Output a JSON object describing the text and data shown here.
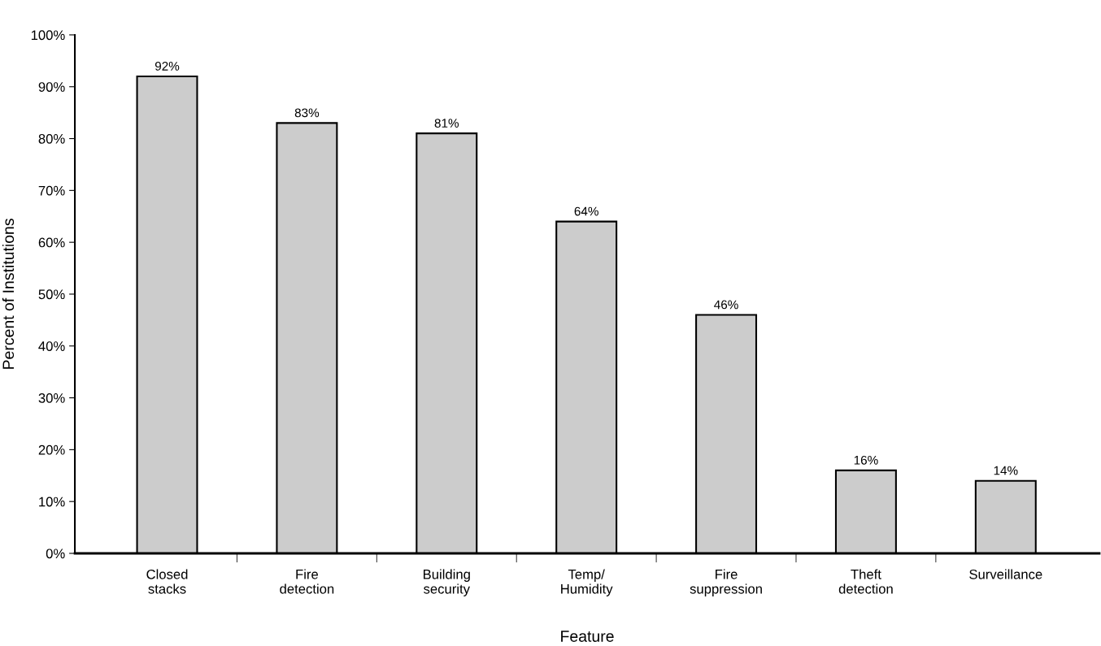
{
  "chart_data": {
    "type": "bar",
    "xlabel": "Feature",
    "ylabel": "Percent of Institutions",
    "categories": [
      "Closed\nstacks",
      "Fire\ndetection",
      "Building\nsecurity",
      "Temp/\nHumidity",
      "Fire\nsuppression",
      "Theft\ndetection",
      "Surveillance"
    ],
    "values": [
      92,
      83,
      81,
      64,
      46,
      16,
      14
    ],
    "value_labels": [
      "92%",
      "83%",
      "81%",
      "64%",
      "46%",
      "16%",
      "14%"
    ],
    "color": "#cccccc",
    "ylim": [
      0,
      100
    ],
    "yticks": [
      {
        "value": 0,
        "label": "0%"
      },
      {
        "value": 10,
        "label": "10%"
      },
      {
        "value": 20,
        "label": "20%"
      },
      {
        "value": 30,
        "label": "30%"
      },
      {
        "value": 40,
        "label": "40%"
      },
      {
        "value": 50,
        "label": "50%"
      },
      {
        "value": 60,
        "label": "60%"
      },
      {
        "value": 70,
        "label": "70%"
      },
      {
        "value": 80,
        "label": "80%"
      },
      {
        "value": 90,
        "label": "90%"
      },
      {
        "value": 100,
        "label": "100%"
      }
    ],
    "grid": false,
    "legend": false
  }
}
